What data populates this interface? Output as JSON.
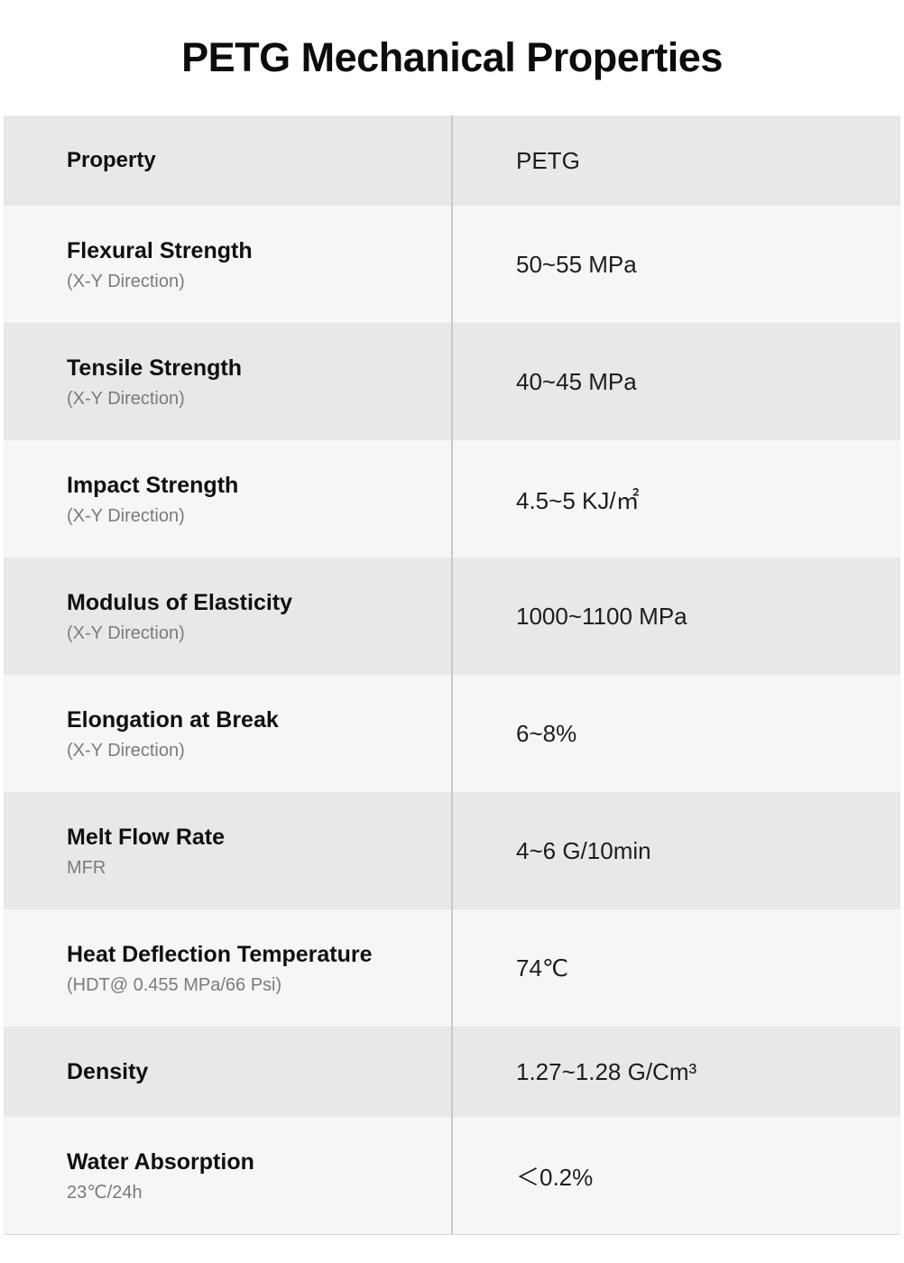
{
  "title": "PETG Mechanical Properties",
  "colors": {
    "row_light_bg": "#f6f6f6",
    "row_gray_bg": "#e8e8e8",
    "divider": "#c9c9c9",
    "note_text": "#7b7b7b"
  },
  "table": {
    "header": {
      "property": "Property",
      "value": "PETG"
    },
    "rows": [
      {
        "property": "Flexural Strength",
        "note": "(X-Y Direction)",
        "value": "50~55 MPa"
      },
      {
        "property": "Tensile Strength",
        "note": "(X-Y Direction)",
        "value": "40~45 MPa"
      },
      {
        "property": "Impact Strength",
        "note": "(X-Y Direction)",
        "value": "4.5~5 KJ/㎡"
      },
      {
        "property": "Modulus of Elasticity",
        "note": "(X-Y Direction)",
        "value": "1000~1100 MPa"
      },
      {
        "property": "Elongation at Break",
        "note": "(X-Y Direction)",
        "value": "6~8%"
      },
      {
        "property": "Melt Flow Rate",
        "note": "MFR",
        "value": "4~6 G/10min"
      },
      {
        "property": "Heat Deflection Temperature",
        "note": "(HDT@ 0.455 MPa/66 Psi)",
        "value": "74℃"
      },
      {
        "property": "Density",
        "note": "",
        "value": "1.27~1.28 G/Cm³"
      },
      {
        "property": "Water Absorption",
        "note": "23℃/24h",
        "value": "＜0.2%"
      }
    ]
  }
}
